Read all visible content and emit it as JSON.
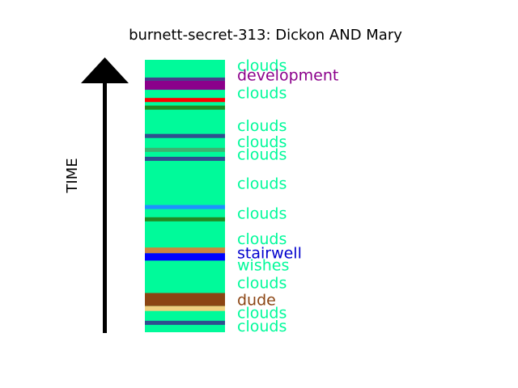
{
  "chart_data": {
    "type": "bar",
    "title": "burnett-secret-313: Dickon AND Mary",
    "ylabel": "TIME",
    "background_color": "#00FA9A",
    "bands": [
      {
        "start": 89.0,
        "end": 92.3,
        "color": "#8B008B"
      },
      {
        "start": 92.3,
        "end": 93.5,
        "color": "#483D8B"
      },
      {
        "start": 84.5,
        "end": 86.0,
        "color": "#FF0000"
      },
      {
        "start": 81.7,
        "end": 83.2,
        "color": "#228B22"
      },
      {
        "start": 71.3,
        "end": 72.8,
        "color": "#2F4F8F"
      },
      {
        "start": 66.2,
        "end": 67.7,
        "color": "#3CB371"
      },
      {
        "start": 62.9,
        "end": 64.4,
        "color": "#2F4F8F"
      },
      {
        "start": 45.2,
        "end": 46.7,
        "color": "#1E90FF"
      },
      {
        "start": 40.7,
        "end": 42.2,
        "color": "#228B22"
      },
      {
        "start": 29.0,
        "end": 31.1,
        "color": "#CD853F"
      },
      {
        "start": 26.3,
        "end": 29.0,
        "color": "#0000FF"
      },
      {
        "start": 9.6,
        "end": 14.4,
        "color": "#8B4513"
      },
      {
        "start": 7.8,
        "end": 9.6,
        "color": "#F0D080"
      },
      {
        "start": 2.7,
        "end": 4.2,
        "color": "#2F4F8F"
      }
    ],
    "labels": [
      {
        "text": "clouds",
        "y": 98.0,
        "color": "#00FA9A"
      },
      {
        "text": "development",
        "y": 94.5,
        "color": "#8B008B"
      },
      {
        "text": "clouds",
        "y": 88.0,
        "color": "#00FA9A"
      },
      {
        "text": "clouds",
        "y": 76.0,
        "color": "#00FA9A"
      },
      {
        "text": "clouds",
        "y": 70.0,
        "color": "#00FA9A"
      },
      {
        "text": "clouds",
        "y": 65.5,
        "color": "#00FA9A"
      },
      {
        "text": "clouds",
        "y": 54.8,
        "color": "#00FA9A"
      },
      {
        "text": "clouds",
        "y": 43.7,
        "color": "#00FA9A"
      },
      {
        "text": "clouds",
        "y": 34.4,
        "color": "#00FA9A"
      },
      {
        "text": "stairwell",
        "y": 29.3,
        "color": "#0000CD"
      },
      {
        "text": "wishes",
        "y": 24.8,
        "color": "#00FA9A"
      },
      {
        "text": "clouds",
        "y": 18.2,
        "color": "#00FA9A"
      },
      {
        "text": "dude",
        "y": 12.0,
        "color": "#8B4513"
      },
      {
        "text": "clouds",
        "y": 7.2,
        "color": "#00FA9A"
      },
      {
        "text": "clouds",
        "y": 2.4,
        "color": "#00FA9A"
      }
    ],
    "ylim": [
      0,
      100
    ]
  }
}
